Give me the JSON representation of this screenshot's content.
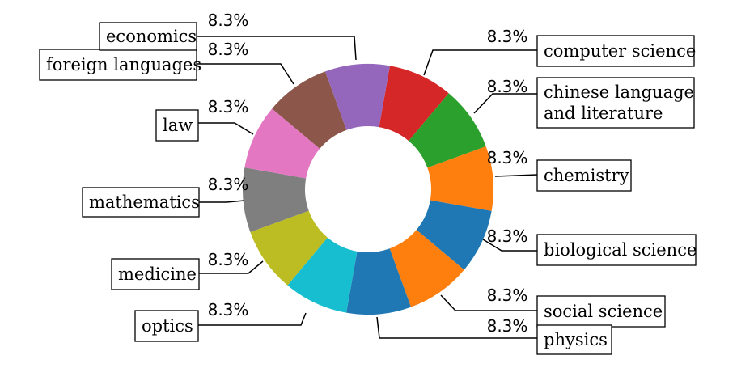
{
  "chart_data": {
    "type": "pie",
    "donut": true,
    "slices": [
      {
        "label": "computer science",
        "pct_label": "8.3%",
        "value": 8.3,
        "color": "#d62728"
      },
      {
        "label": "chinese language\nand literature",
        "pct_label": "8.3%",
        "value": 8.3,
        "color": "#2ca02c"
      },
      {
        "label": "chemistry",
        "pct_label": "8.3%",
        "value": 8.3,
        "color": "#ff7f0e"
      },
      {
        "label": "biological science",
        "pct_label": "8.3%",
        "value": 8.3,
        "color": "#1f77b4"
      },
      {
        "label": "social science",
        "pct_label": "8.3%",
        "value": 8.3,
        "color": "#ff7f0e"
      },
      {
        "label": "physics",
        "pct_label": "8.3%",
        "value": 8.3,
        "color": "#1f77b4"
      },
      {
        "label": "optics",
        "pct_label": "8.3%",
        "value": 8.3,
        "color": "#17becf"
      },
      {
        "label": "medicine",
        "pct_label": "8.3%",
        "value": 8.3,
        "color": "#bcbd22"
      },
      {
        "label": "mathematics",
        "pct_label": "8.3%",
        "value": 8.3,
        "color": "#7f7f7f"
      },
      {
        "label": "law",
        "pct_label": "8.3%",
        "value": 8.3,
        "color": "#e377c2"
      },
      {
        "label": "foreign languages",
        "pct_label": "8.3%",
        "value": 8.3,
        "color": "#8c564b"
      },
      {
        "label": "economics",
        "pct_label": "8.3%",
        "value": 8.3,
        "color": "#9467bd"
      }
    ]
  }
}
